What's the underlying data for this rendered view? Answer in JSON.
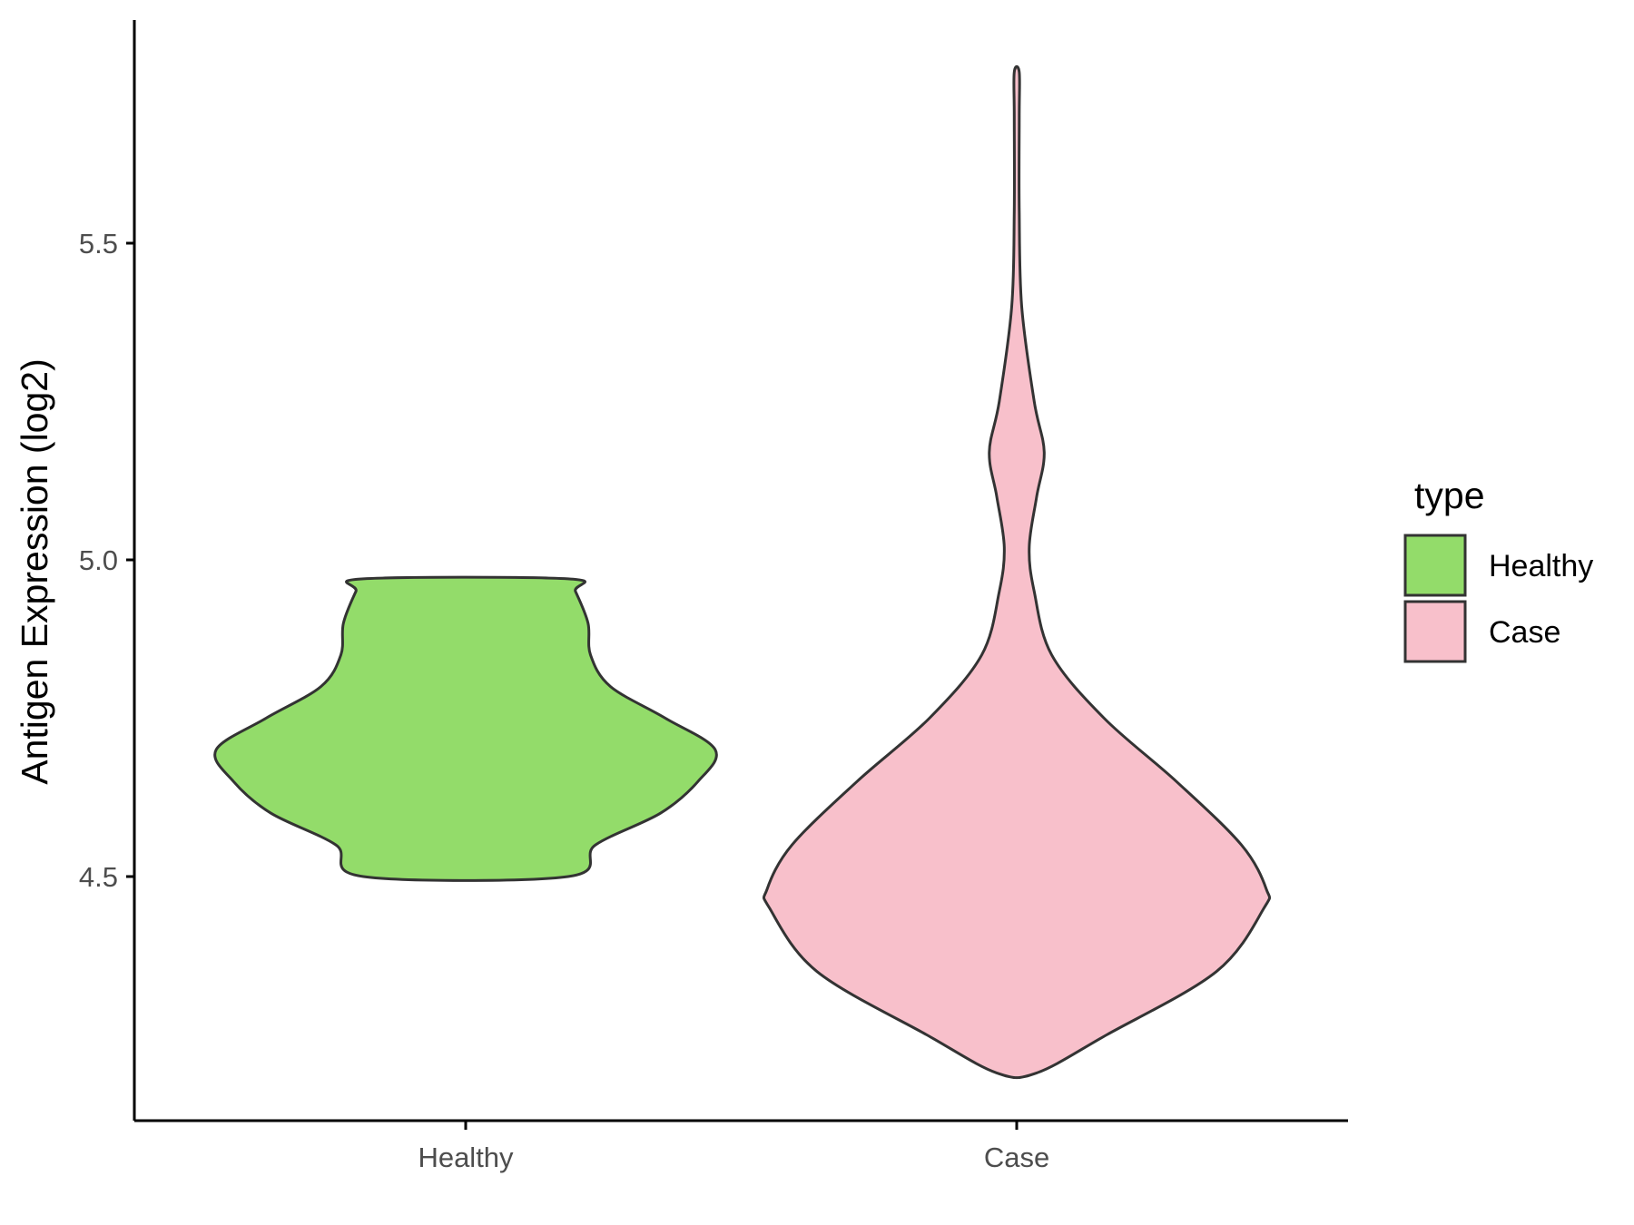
{
  "chart_data": {
    "type": "violin",
    "xlabel": "",
    "ylabel": "Antigen Expression (log2)",
    "ylim": [
      4.1,
      5.85
    ],
    "yticks": [
      4.5,
      5.0,
      5.5
    ],
    "ytick_labels": [
      "4.5",
      "5.0",
      "5.5"
    ],
    "categories": [
      "Healthy",
      "Case"
    ],
    "grid": false,
    "legend": {
      "title": "type",
      "position": "right",
      "items": [
        {
          "label": "Healthy",
          "color": "#93dc6a"
        },
        {
          "label": "Case",
          "color": "#f8c0cb"
        }
      ]
    },
    "series": [
      {
        "name": "Healthy",
        "color": "#93dc6a",
        "y_min": 4.5,
        "y_max": 4.97,
        "density_profile": [
          [
            4.5,
            0.41
          ],
          [
            4.55,
            0.52
          ],
          [
            4.6,
            0.78
          ],
          [
            4.65,
            0.93
          ],
          [
            4.7,
            1.0
          ],
          [
            4.75,
            0.8
          ],
          [
            4.8,
            0.58
          ],
          [
            4.85,
            0.5
          ],
          [
            4.9,
            0.49
          ],
          [
            4.95,
            0.44
          ],
          [
            4.97,
            0.41
          ]
        ]
      },
      {
        "name": "Case",
        "color": "#f8c0cb",
        "y_min": 4.19,
        "y_max": 5.77,
        "density_profile": [
          [
            4.19,
            0.08
          ],
          [
            4.25,
            0.36
          ],
          [
            4.35,
            0.8
          ],
          [
            4.45,
            0.99
          ],
          [
            4.48,
            1.0
          ],
          [
            4.55,
            0.9
          ],
          [
            4.65,
            0.64
          ],
          [
            4.75,
            0.35
          ],
          [
            4.85,
            0.14
          ],
          [
            4.95,
            0.07
          ],
          [
            5.02,
            0.05
          ],
          [
            5.1,
            0.08
          ],
          [
            5.17,
            0.11
          ],
          [
            5.25,
            0.07
          ],
          [
            5.4,
            0.02
          ],
          [
            5.55,
            0.01
          ],
          [
            5.7,
            0.01
          ],
          [
            5.77,
            0.01
          ]
        ]
      }
    ]
  },
  "colors": {
    "outline": "#333333",
    "axis": "#000000"
  }
}
